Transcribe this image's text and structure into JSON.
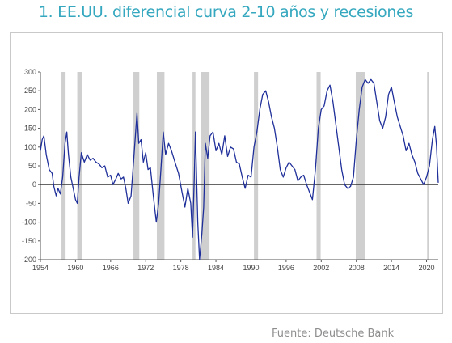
{
  "title": "1. EE.UU. diferencial curva 2-10 años y recesiones",
  "source": "Fuente: Deutsche Bank",
  "chart_data": {
    "type": "line",
    "title": "1. EE.UU. diferencial curva 2-10 años y recesiones",
    "xlabel": "",
    "ylabel": "",
    "xlim": [
      1954,
      2022
    ],
    "ylim": [
      -200,
      300
    ],
    "yticks": [
      "300",
      "250",
      "200",
      "150",
      "100",
      "50",
      "0",
      "-50",
      "-100",
      "-150",
      "-200"
    ],
    "xticks": [
      "1954",
      "1960",
      "1966",
      "1972",
      "1978",
      "1984",
      "1990",
      "1996",
      "2002",
      "2008",
      "2014",
      "2020"
    ],
    "grid": false,
    "line_color": "#1f2f9a",
    "recession_color": "#cfcfcf",
    "recessions": [
      [
        1957.6,
        1958.3
      ],
      [
        1960.3,
        1961.1
      ],
      [
        1969.9,
        1970.9
      ],
      [
        1973.9,
        1975.2
      ],
      [
        1980.0,
        1980.5
      ],
      [
        1981.5,
        1982.9
      ],
      [
        1990.5,
        1991.2
      ],
      [
        2001.2,
        2001.9
      ],
      [
        2007.9,
        2009.5
      ],
      [
        2020.1,
        2020.4
      ]
    ],
    "series": [
      {
        "values": [
          [
            1954.0,
            90
          ],
          [
            1954.3,
            120
          ],
          [
            1954.6,
            130
          ],
          [
            1955.0,
            80
          ],
          [
            1955.5,
            40
          ],
          [
            1956.0,
            30
          ],
          [
            1956.3,
            -5
          ],
          [
            1956.7,
            -30
          ],
          [
            1957.0,
            -10
          ],
          [
            1957.4,
            -25
          ],
          [
            1957.8,
            20
          ],
          [
            1958.2,
            110
          ],
          [
            1958.5,
            140
          ],
          [
            1958.8,
            80
          ],
          [
            1959.2,
            20
          ],
          [
            1959.6,
            -10
          ],
          [
            1960.0,
            -40
          ],
          [
            1960.3,
            -50
          ],
          [
            1960.6,
            20
          ],
          [
            1961.0,
            85
          ],
          [
            1961.5,
            60
          ],
          [
            1962.0,
            80
          ],
          [
            1962.5,
            65
          ],
          [
            1963.0,
            70
          ],
          [
            1963.5,
            60
          ],
          [
            1964.0,
            55
          ],
          [
            1964.5,
            45
          ],
          [
            1965.0,
            50
          ],
          [
            1965.5,
            20
          ],
          [
            1966.0,
            25
          ],
          [
            1966.4,
            0
          ],
          [
            1966.9,
            15
          ],
          [
            1967.3,
            30
          ],
          [
            1967.8,
            15
          ],
          [
            1968.2,
            20
          ],
          [
            1968.6,
            -10
          ],
          [
            1969.0,
            -50
          ],
          [
            1969.5,
            -30
          ],
          [
            1970.0,
            80
          ],
          [
            1970.5,
            190
          ],
          [
            1970.8,
            110
          ],
          [
            1971.2,
            120
          ],
          [
            1971.6,
            60
          ],
          [
            1972.0,
            85
          ],
          [
            1972.4,
            40
          ],
          [
            1972.8,
            45
          ],
          [
            1973.3,
            -30
          ],
          [
            1973.8,
            -100
          ],
          [
            1974.2,
            -50
          ],
          [
            1974.6,
            40
          ],
          [
            1975.0,
            140
          ],
          [
            1975.4,
            80
          ],
          [
            1975.9,
            110
          ],
          [
            1976.4,
            90
          ],
          [
            1977.0,
            60
          ],
          [
            1977.6,
            30
          ],
          [
            1978.2,
            -20
          ],
          [
            1978.7,
            -60
          ],
          [
            1979.2,
            -10
          ],
          [
            1979.7,
            -50
          ],
          [
            1980.0,
            -140
          ],
          [
            1980.3,
            20
          ],
          [
            1980.5,
            140
          ],
          [
            1980.9,
            -100
          ],
          [
            1981.2,
            -200
          ],
          [
            1981.6,
            -130
          ],
          [
            1981.9,
            -60
          ],
          [
            1982.2,
            110
          ],
          [
            1982.6,
            70
          ],
          [
            1983.0,
            130
          ],
          [
            1983.5,
            140
          ],
          [
            1984.0,
            90
          ],
          [
            1984.5,
            110
          ],
          [
            1985.0,
            80
          ],
          [
            1985.5,
            130
          ],
          [
            1986.0,
            75
          ],
          [
            1986.5,
            100
          ],
          [
            1987.0,
            95
          ],
          [
            1987.5,
            60
          ],
          [
            1988.0,
            55
          ],
          [
            1988.5,
            20
          ],
          [
            1989.0,
            -10
          ],
          [
            1989.5,
            25
          ],
          [
            1990.0,
            20
          ],
          [
            1990.5,
            100
          ],
          [
            1991.0,
            140
          ],
          [
            1991.5,
            200
          ],
          [
            1992.0,
            240
          ],
          [
            1992.5,
            250
          ],
          [
            1993.0,
            220
          ],
          [
            1993.5,
            180
          ],
          [
            1994.0,
            150
          ],
          [
            1994.5,
            100
          ],
          [
            1995.0,
            40
          ],
          [
            1995.5,
            20
          ],
          [
            1996.0,
            45
          ],
          [
            1996.5,
            60
          ],
          [
            1997.0,
            50
          ],
          [
            1997.5,
            40
          ],
          [
            1998.0,
            10
          ],
          [
            1998.5,
            20
          ],
          [
            1999.0,
            25
          ],
          [
            1999.5,
            0
          ],
          [
            2000.0,
            -20
          ],
          [
            2000.5,
            -40
          ],
          [
            2001.0,
            40
          ],
          [
            2001.5,
            150
          ],
          [
            2002.0,
            200
          ],
          [
            2002.5,
            210
          ],
          [
            2003.0,
            250
          ],
          [
            2003.5,
            265
          ],
          [
            2004.0,
            220
          ],
          [
            2004.5,
            160
          ],
          [
            2005.0,
            100
          ],
          [
            2005.5,
            40
          ],
          [
            2006.0,
            0
          ],
          [
            2006.5,
            -10
          ],
          [
            2007.0,
            -5
          ],
          [
            2007.5,
            20
          ],
          [
            2008.0,
            120
          ],
          [
            2008.5,
            200
          ],
          [
            2009.0,
            260
          ],
          [
            2009.5,
            280
          ],
          [
            2010.0,
            270
          ],
          [
            2010.5,
            280
          ],
          [
            2011.0,
            270
          ],
          [
            2011.5,
            220
          ],
          [
            2012.0,
            170
          ],
          [
            2012.5,
            150
          ],
          [
            2013.0,
            180
          ],
          [
            2013.5,
            240
          ],
          [
            2014.0,
            260
          ],
          [
            2014.5,
            220
          ],
          [
            2015.0,
            180
          ],
          [
            2015.5,
            155
          ],
          [
            2016.0,
            130
          ],
          [
            2016.5,
            90
          ],
          [
            2017.0,
            110
          ],
          [
            2017.5,
            80
          ],
          [
            2018.0,
            60
          ],
          [
            2018.5,
            30
          ],
          [
            2019.0,
            15
          ],
          [
            2019.5,
            0
          ],
          [
            2020.0,
            20
          ],
          [
            2020.5,
            50
          ],
          [
            2021.0,
            120
          ],
          [
            2021.4,
            155
          ],
          [
            2021.7,
            105
          ],
          [
            2022.0,
            5
          ]
        ]
      }
    ]
  }
}
